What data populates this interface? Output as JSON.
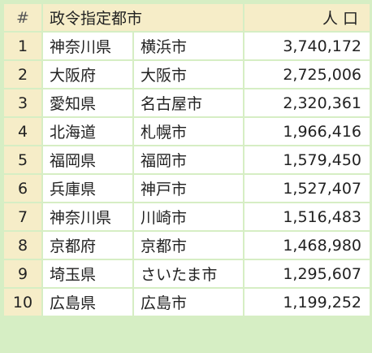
{
  "header": {
    "num": "#",
    "city": "政令指定都市",
    "population": "人 口"
  },
  "rows": [
    {
      "num": "1",
      "prefecture": "神奈川県",
      "city": "横浜市",
      "population": "3,740,172"
    },
    {
      "num": "2",
      "prefecture": "大阪府",
      "city": "大阪市",
      "population": "2,725,006"
    },
    {
      "num": "3",
      "prefecture": "愛知県",
      "city": "名古屋市",
      "population": "2,320,361"
    },
    {
      "num": "4",
      "prefecture": "北海道",
      "city": "札幌市",
      "population": "1,966,416"
    },
    {
      "num": "5",
      "prefecture": "福岡県",
      "city": "福岡市",
      "population": "1,579,450"
    },
    {
      "num": "6",
      "prefecture": "兵庫県",
      "city": "神戸市",
      "population": "1,527,407"
    },
    {
      "num": "7",
      "prefecture": "神奈川県",
      "city": "川崎市",
      "population": "1,516,483"
    },
    {
      "num": "8",
      "prefecture": "京都府",
      "city": "京都市",
      "population": "1,468,980"
    },
    {
      "num": "9",
      "prefecture": "埼玉県",
      "city": "さいたま市",
      "population": "1,295,607"
    },
    {
      "num": "10",
      "prefecture": "広島県",
      "city": "広島市",
      "population": "1,199,252"
    }
  ]
}
